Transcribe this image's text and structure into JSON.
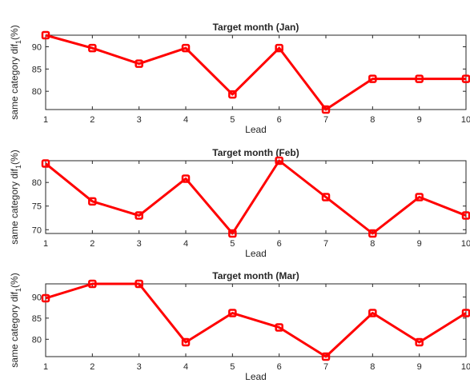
{
  "chart_data": [
    {
      "type": "line",
      "title": "Target month (Jan)",
      "xlabel": "Lead",
      "ylabel": "same category dif",
      "ylabel_subscript": "1",
      "ylabel_suffix": "(%)",
      "x": [
        1,
        2,
        3,
        4,
        5,
        6,
        7,
        8,
        9,
        10
      ],
      "values": [
        92.6,
        89.7,
        86.2,
        89.7,
        79.3,
        89.7,
        75.9,
        82.8,
        82.8,
        82.8
      ],
      "xlim": [
        1,
        10
      ],
      "ylim": [
        75.9,
        92.6
      ],
      "yticks": [
        80,
        85,
        90
      ],
      "color": "#ff0000",
      "grid": false
    },
    {
      "type": "line",
      "title": "Target month (Feb)",
      "xlabel": "Lead",
      "ylabel": "same category dif",
      "ylabel_subscript": "1",
      "ylabel_suffix": "(%)",
      "x": [
        1,
        2,
        3,
        4,
        5,
        6,
        7,
        8,
        9,
        10
      ],
      "values": [
        84.0,
        76.0,
        73.0,
        80.8,
        69.2,
        84.6,
        76.9,
        69.2,
        76.9,
        73.0
      ],
      "xlim": [
        1,
        10
      ],
      "ylim": [
        69.2,
        84.6
      ],
      "yticks": [
        70,
        75,
        80
      ],
      "color": "#ff0000",
      "grid": false
    },
    {
      "type": "line",
      "title": "Target month (Mar)",
      "xlabel": "Lead",
      "ylabel": "same category dif",
      "ylabel_subscript": "1",
      "ylabel_suffix": "(%)",
      "x": [
        1,
        2,
        3,
        4,
        5,
        6,
        7,
        8,
        9,
        10
      ],
      "values": [
        89.7,
        93.1,
        93.1,
        79.3,
        86.2,
        82.8,
        75.9,
        86.2,
        79.3,
        86.2
      ],
      "xlim": [
        1,
        10
      ],
      "ylim": [
        75.9,
        93.1
      ],
      "yticks": [
        80,
        85,
        90
      ],
      "color": "#ff0000",
      "grid": false
    }
  ]
}
